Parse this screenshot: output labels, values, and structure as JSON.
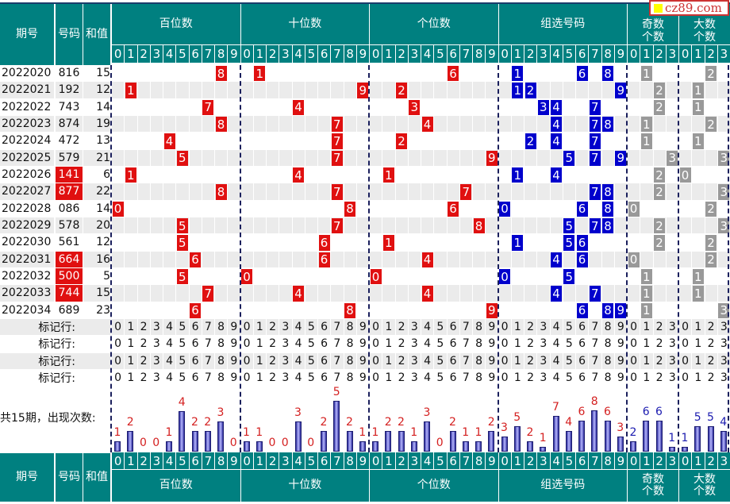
{
  "header": {
    "period": "期号",
    "number": "号码",
    "sum": "和值",
    "sections": [
      {
        "label": "百位数",
        "digits": [
          "0",
          "1",
          "2",
          "3",
          "4",
          "5",
          "6",
          "7",
          "8",
          "9"
        ]
      },
      {
        "label": "十位数",
        "digits": [
          "0",
          "1",
          "2",
          "3",
          "4",
          "5",
          "6",
          "7",
          "8",
          "9"
        ]
      },
      {
        "label": "个位数",
        "digits": [
          "0",
          "1",
          "2",
          "3",
          "4",
          "5",
          "6",
          "7",
          "8",
          "9"
        ]
      },
      {
        "label": "组选号码",
        "digits": [
          "0",
          "1",
          "2",
          "3",
          "4",
          "5",
          "6",
          "7",
          "8",
          "9"
        ]
      },
      {
        "label": "奇数个数",
        "digits": [
          "0",
          "1",
          "2",
          "3"
        ]
      },
      {
        "label": "大数个数",
        "digits": [
          "0",
          "1",
          "2",
          "3"
        ]
      }
    ]
  },
  "watermark": "cz89.com",
  "rows": [
    {
      "period": "2022020",
      "number": "816",
      "sum": "15"
    },
    {
      "period": "2022021",
      "number": "192",
      "sum": "12"
    },
    {
      "period": "2022022",
      "number": "743",
      "sum": "14"
    },
    {
      "period": "2022023",
      "number": "874",
      "sum": "19"
    },
    {
      "period": "2022024",
      "number": "472",
      "sum": "13"
    },
    {
      "period": "2022025",
      "number": "579",
      "sum": "21"
    },
    {
      "period": "2022026",
      "number": "141",
      "sum": "6"
    },
    {
      "period": "2022027",
      "number": "877",
      "sum": "22"
    },
    {
      "period": "2022028",
      "number": "086",
      "sum": "14"
    },
    {
      "period": "2022029",
      "number": "578",
      "sum": "20"
    },
    {
      "period": "2022030",
      "number": "561",
      "sum": "12"
    },
    {
      "period": "2022031",
      "number": "664",
      "sum": "16"
    },
    {
      "period": "2022032",
      "number": "500",
      "sum": "5"
    },
    {
      "period": "2022033",
      "number": "744",
      "sum": "15"
    },
    {
      "period": "2022034",
      "number": "689",
      "sum": "23"
    }
  ],
  "mark_rows": {
    "label": "标记行:",
    "count": 4
  },
  "summary": {
    "label": "共15期，出现次数:",
    "counts": [
      [
        1,
        2,
        0,
        0,
        1,
        4,
        2,
        2,
        3,
        0
      ],
      [
        1,
        1,
        0,
        0,
        3,
        0,
        2,
        5,
        2,
        1
      ],
      [
        1,
        2,
        2,
        1,
        3,
        0,
        2,
        1,
        1,
        2
      ],
      [
        3,
        5,
        2,
        1,
        7,
        4,
        6,
        8,
        6,
        3
      ],
      [
        2,
        6,
        6,
        1
      ],
      [
        1,
        5,
        5,
        4
      ]
    ]
  },
  "colors": {
    "header": "#008080",
    "position_mark": "#e01010",
    "group_mark": "#0000cc",
    "count_mark": "#999999",
    "count_red": "#d42020",
    "count_blue": "#1c1cb0"
  }
}
